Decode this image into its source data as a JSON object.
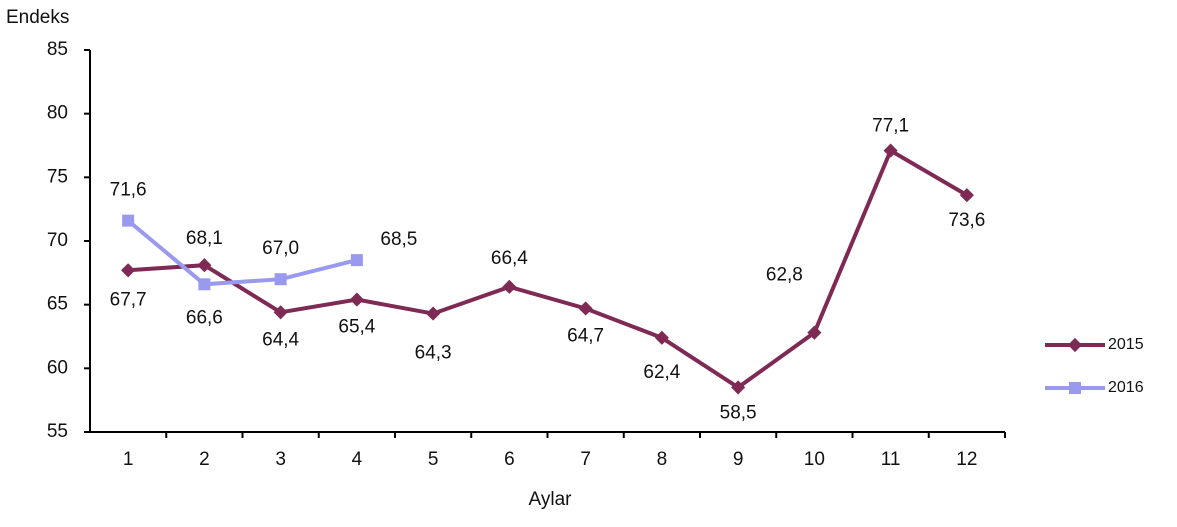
{
  "chart_data": {
    "type": "line",
    "y_label": "Endeks",
    "x_label": "Aylar",
    "categories": [
      "1",
      "2",
      "3",
      "4",
      "5",
      "6",
      "7",
      "8",
      "9",
      "10",
      "11",
      "12"
    ],
    "series": [
      {
        "name": "2015",
        "color": "#7f2a55",
        "values": [
          67.7,
          68.1,
          64.4,
          65.4,
          64.3,
          66.4,
          64.7,
          62.4,
          58.5,
          62.8,
          77.1,
          73.6
        ],
        "value_labels": [
          "67,7",
          "68,1",
          "64,4",
          "65,4",
          "64,3",
          "66,4",
          "64,7",
          "62,4",
          "58,5",
          "62,8",
          "77,1",
          "73,6"
        ]
      },
      {
        "name": "2016",
        "color": "#9999ee",
        "values": [
          71.6,
          66.6,
          67.0,
          68.5,
          null,
          null,
          null,
          null,
          null,
          null,
          null,
          null
        ],
        "value_labels": [
          "71,6",
          "66,6",
          "67,0",
          "68,5",
          null,
          null,
          null,
          null,
          null,
          null,
          null,
          null
        ]
      }
    ],
    "ylim": [
      55,
      85
    ],
    "yticks": [
      55,
      60,
      65,
      70,
      75,
      80,
      85
    ],
    "grid": false,
    "legend": "right"
  }
}
